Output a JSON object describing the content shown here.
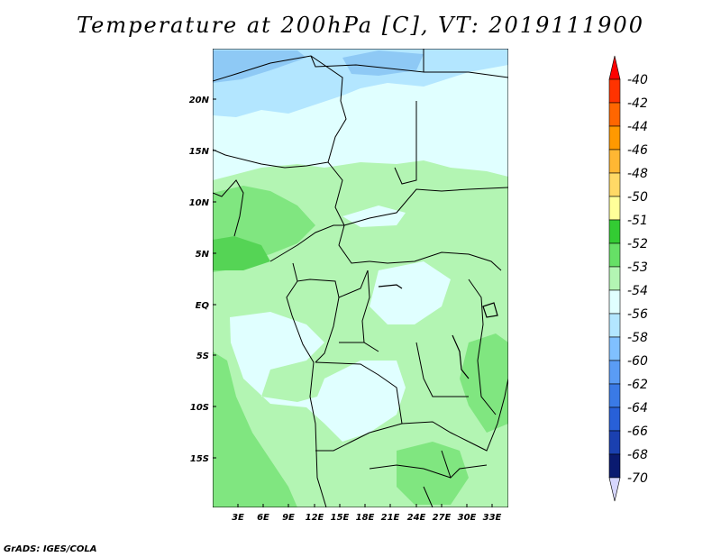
{
  "title": "Temperature at 200hPa [C], VT: 2019111900",
  "credit": "GrADS: IGES/COLA",
  "map": {
    "lat_labels": [
      "20N",
      "15N",
      "10N",
      "5N",
      "EQ",
      "5S",
      "10S",
      "15S"
    ],
    "lon_labels": [
      "3E",
      "6E",
      "9E",
      "12E",
      "15E",
      "18E",
      "21E",
      "24E",
      "27E",
      "30E",
      "33E"
    ]
  },
  "colorbar": {
    "labels": [
      "-40",
      "-42",
      "-44",
      "-46",
      "-48",
      "-50",
      "-51",
      "-52",
      "-53",
      "-54",
      "-56",
      "-58",
      "-60",
      "-62",
      "-64",
      "-66",
      "-68",
      "-70"
    ],
    "colors": [
      "#ff0000",
      "#ff3300",
      "#ff6600",
      "#ff9900",
      "#ffb733",
      "#ffd966",
      "#ffff99",
      "#33cc33",
      "#66e066",
      "#b3f5b3",
      "#e0ffff",
      "#b3e6ff",
      "#80c0ff",
      "#5a9cf5",
      "#3a7ae6",
      "#2860d8",
      "#1a40b0",
      "#0a1a70",
      "#d6d6ff"
    ]
  }
}
